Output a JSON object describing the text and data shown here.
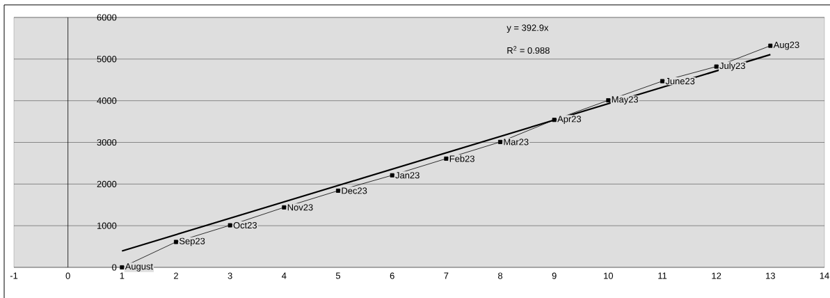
{
  "chart_data": {
    "type": "line",
    "xlim": [
      -1,
      14
    ],
    "xticks": [
      -1,
      0,
      1,
      2,
      3,
      4,
      5,
      6,
      7,
      8,
      9,
      10,
      11,
      12,
      13,
      14
    ],
    "ylim": [
      0,
      6000
    ],
    "yticks": [
      0,
      1000,
      2000,
      3000,
      4000,
      5000,
      6000
    ],
    "grid": "y",
    "annotations": [
      "y = 392.9x",
      "R$^{2}$ = 0.988"
    ],
    "series": [
      {
        "color": "#000000",
        "marker": "square",
        "x": [
          1,
          2,
          3,
          4,
          5,
          6,
          7,
          8,
          9,
          10,
          11,
          12,
          13
        ],
        "values": [
          0,
          610,
          1010,
          1440,
          1840,
          2210,
          2610,
          3010,
          3540,
          4010,
          4470,
          4820,
          5320
        ],
        "value_labels": [
          "August",
          "Sep23",
          "Oct23",
          "Nov23",
          "Dec23",
          "Jan23",
          "Feb23",
          "Mar23",
          "Apr23",
          "May23",
          "June23",
          "July23",
          "Aug23"
        ]
      },
      {
        "type": "line",
        "color": "#000000",
        "marker": "none",
        "x": [
          1,
          13
        ],
        "values": [
          393,
          5108
        ]
      }
    ]
  }
}
